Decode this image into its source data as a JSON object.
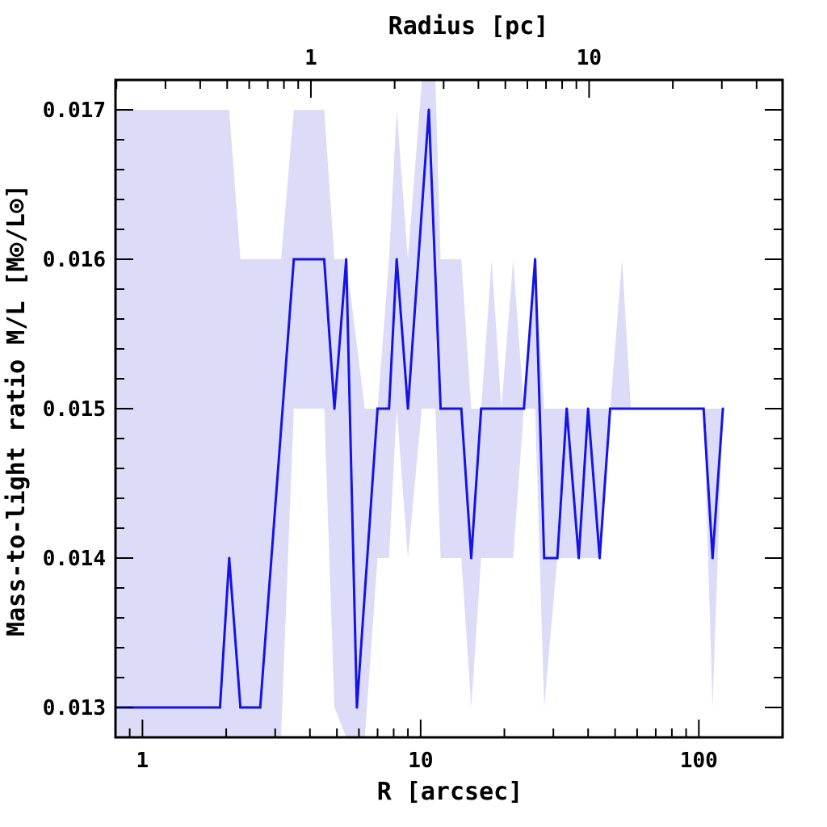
{
  "chart_data": {
    "type": "line",
    "title": "",
    "xlabel": "R [arcsec]",
    "ylabel": "Mass-to-light ratio M/L [M⊙/L⊙]",
    "x2label": "Radius [pc]",
    "xscale": "log",
    "xlim": [
      0.8,
      200
    ],
    "ylim": [
      0.0128,
      0.0172
    ],
    "x_ticks": [
      1,
      10,
      100
    ],
    "x_tick_labels": [
      "1",
      "10",
      "100"
    ],
    "x2_ticks": [
      1,
      10
    ],
    "x2_tick_labels": [
      "1",
      "10"
    ],
    "pc_per_arcsec": 0.248,
    "y_ticks": [
      0.013,
      0.014,
      0.015,
      0.016,
      0.017
    ],
    "y_tick_labels": [
      "0.013",
      "0.014",
      "0.015",
      "0.016",
      "0.017"
    ],
    "grid": false,
    "line_color": "#1414e6",
    "band_color": "#dcdcf8",
    "series": [
      {
        "x": [
          0.8,
          1.9,
          2.05,
          2.25,
          2.65,
          3.5,
          4.5,
          4.9,
          5.4,
          5.9,
          7.0,
          7.7,
          8.2,
          9.0,
          10.7,
          11.8,
          14.0,
          15.2,
          16.5,
          23.5,
          25.8,
          27.8,
          31.0,
          33.5,
          37.0,
          40.0,
          44.0,
          48.0,
          104.0,
          112.0,
          122.0
        ],
        "values": [
          0.013,
          0.013,
          0.014,
          0.013,
          0.013,
          0.016,
          0.016,
          0.015,
          0.016,
          0.013,
          0.015,
          0.015,
          0.016,
          0.015,
          0.017,
          0.015,
          0.015,
          0.014,
          0.015,
          0.015,
          0.016,
          0.014,
          0.014,
          0.015,
          0.014,
          0.015,
          0.014,
          0.015,
          0.015,
          0.014,
          0.015
        ]
      }
    ],
    "band": {
      "x": [
        0.8,
        2.05,
        2.25,
        3.15,
        3.5,
        4.5,
        4.9,
        5.4,
        6.3,
        7.0,
        7.7,
        8.2,
        9.0,
        10.1,
        10.7,
        11.3,
        11.8,
        14.0,
        15.2,
        16.5,
        18.0,
        19.5,
        21.5,
        23.5,
        25.8,
        27.8,
        31.0,
        33.5,
        37.0,
        40.0,
        44.0,
        48.0,
        53.0,
        57.0,
        104.0,
        112.0,
        122.0
      ],
      "upper": [
        0.017,
        0.017,
        0.016,
        0.016,
        0.017,
        0.017,
        0.016,
        0.016,
        0.015,
        0.015,
        0.016,
        0.017,
        0.016,
        0.0172,
        0.0172,
        0.0172,
        0.016,
        0.016,
        0.015,
        0.015,
        0.016,
        0.015,
        0.016,
        0.015,
        0.016,
        0.015,
        0.015,
        0.015,
        0.015,
        0.015,
        0.015,
        0.015,
        0.016,
        0.015,
        0.015,
        0.015,
        0.015
      ],
      "lower": [
        0.0128,
        0.0128,
        0.0128,
        0.0128,
        0.015,
        0.015,
        0.013,
        0.0128,
        0.0128,
        0.014,
        0.014,
        0.015,
        0.014,
        0.015,
        0.015,
        0.015,
        0.014,
        0.014,
        0.013,
        0.014,
        0.014,
        0.014,
        0.014,
        0.015,
        0.015,
        0.013,
        0.014,
        0.014,
        0.014,
        0.014,
        0.014,
        0.015,
        0.015,
        0.015,
        0.015,
        0.013,
        0.015
      ]
    }
  }
}
